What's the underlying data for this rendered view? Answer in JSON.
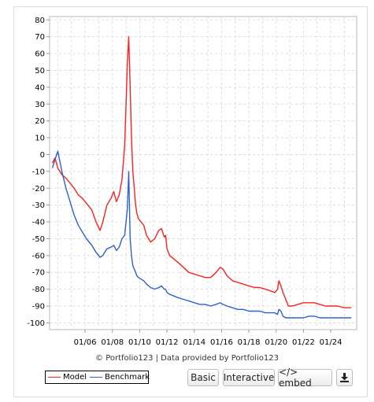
{
  "chart_data": {
    "type": "line",
    "title": "",
    "xlabel": "",
    "ylabel": "",
    "ylim": [
      -104,
      82
    ],
    "xlim": [
      2003.4,
      2025.9
    ],
    "y_ticks": [
      80,
      70,
      60,
      50,
      40,
      30,
      20,
      10,
      0,
      -10,
      -20,
      -30,
      -40,
      -50,
      -60,
      -70,
      -80,
      -90,
      -100
    ],
    "x_tick_labels": [
      "01/06",
      "01/08",
      "01/10",
      "01/12",
      "01/14",
      "01/16",
      "01/18",
      "01/20",
      "01/22",
      "01/24"
    ],
    "grid": true,
    "legend_position": "bottom-left",
    "series": [
      {
        "name": "Model",
        "color": "#ff2020",
        "x": [
          2003.6,
          2003.8,
          2004.0,
          2004.3,
          2004.6,
          2004.9,
          2005.2,
          2005.5,
          2005.8,
          2006.1,
          2006.5,
          2006.8,
          2007.1,
          2007.3,
          2007.6,
          2007.9,
          2008.1,
          2008.3,
          2008.5,
          2008.7,
          2008.9,
          2009.0,
          2009.1,
          2009.2,
          2009.3,
          2009.4,
          2009.5,
          2009.6,
          2009.7,
          2009.8,
          2009.9,
          2010.1,
          2010.3,
          2010.5,
          2010.8,
          2011.1,
          2011.4,
          2011.6,
          2011.8,
          2011.9,
          2012.0,
          2012.2,
          2012.5,
          2012.8,
          2013.2,
          2013.6,
          2014.0,
          2014.4,
          2014.8,
          2015.2,
          2015.6,
          2015.9,
          2016.1,
          2016.4,
          2016.8,
          2017.2,
          2017.6,
          2018.0,
          2018.4,
          2018.8,
          2019.2,
          2019.6,
          2019.9,
          2020.1,
          2020.2,
          2020.35,
          2020.5,
          2020.7,
          2020.9,
          2021.2,
          2021.6,
          2022.0,
          2022.4,
          2022.8,
          2023.2,
          2023.6,
          2024.0,
          2024.5,
          2025.0,
          2025.5
        ],
        "y": [
          -5,
          -2,
          -8,
          -12,
          -14,
          -17,
          -20,
          -24,
          -26,
          -29,
          -33,
          -40,
          -45,
          -40,
          -30,
          -26,
          -22,
          -28,
          -24,
          -15,
          5,
          30,
          55,
          70,
          40,
          10,
          -10,
          -20,
          -30,
          -35,
          -38,
          -40,
          -42,
          -48,
          -52,
          -50,
          -45,
          -44,
          -49,
          -48,
          -56,
          -60,
          -62,
          -64,
          -67,
          -70,
          -71,
          -72,
          -73,
          -73,
          -70,
          -67,
          -68,
          -72,
          -75,
          -76,
          -77,
          -78,
          -79,
          -79,
          -80,
          -81,
          -82,
          -80,
          -75,
          -78,
          -82,
          -86,
          -90,
          -90,
          -89,
          -88,
          -88,
          -88,
          -89,
          -90,
          -90,
          -90,
          -91,
          -91
        ]
      },
      {
        "name": "Benchmark",
        "color": "#3060c8",
        "x": [
          2003.6,
          2003.8,
          2004.0,
          2004.3,
          2004.6,
          2004.9,
          2005.2,
          2005.5,
          2005.8,
          2006.1,
          2006.5,
          2006.8,
          2007.1,
          2007.3,
          2007.6,
          2007.9,
          2008.1,
          2008.3,
          2008.5,
          2008.7,
          2008.9,
          2009.0,
          2009.1,
          2009.2,
          2009.3,
          2009.4,
          2009.5,
          2009.6,
          2009.7,
          2009.8,
          2009.9,
          2010.1,
          2010.3,
          2010.5,
          2010.8,
          2011.1,
          2011.4,
          2011.6,
          2011.8,
          2011.9,
          2012.0,
          2012.2,
          2012.5,
          2012.8,
          2013.2,
          2013.6,
          2014.0,
          2014.4,
          2014.8,
          2015.2,
          2015.6,
          2015.9,
          2016.1,
          2016.4,
          2016.8,
          2017.2,
          2017.6,
          2018.0,
          2018.4,
          2018.8,
          2019.2,
          2019.6,
          2019.9,
          2020.1,
          2020.2,
          2020.35,
          2020.5,
          2020.7,
          2020.9,
          2021.2,
          2021.6,
          2022.0,
          2022.4,
          2022.8,
          2023.2,
          2023.6,
          2024.0,
          2024.5,
          2025.0,
          2025.5
        ],
        "y": [
          -8,
          -3,
          2,
          -10,
          -20,
          -28,
          -36,
          -42,
          -46,
          -50,
          -54,
          -58,
          -61,
          -60,
          -56,
          -55,
          -54,
          -57,
          -55,
          -50,
          -48,
          -40,
          -32,
          -10,
          -50,
          -60,
          -66,
          -68,
          -70,
          -72,
          -73,
          -74,
          -75,
          -77,
          -79,
          -80,
          -79,
          -78,
          -80,
          -80,
          -82,
          -83,
          -84,
          -85,
          -86,
          -87,
          -88,
          -89,
          -89,
          -90,
          -89,
          -88,
          -89,
          -90,
          -91,
          -92,
          -92,
          -93,
          -93,
          -93,
          -94,
          -94,
          -94,
          -95,
          -92,
          -93,
          -96,
          -97,
          -97,
          -97,
          -97,
          -97,
          -96,
          -96,
          -97,
          -97,
          -97,
          -97,
          -97,
          -97
        ]
      }
    ]
  },
  "footer": {
    "credit": "© Portfolio123 | Data provided by Portfolio123",
    "legend": [
      "Model",
      "Benchmark"
    ]
  },
  "toolbar": {
    "basic_label": "Basic",
    "interactive_label": "Interactive",
    "embed_label": "</> embed",
    "download_icon": "download-icon"
  }
}
